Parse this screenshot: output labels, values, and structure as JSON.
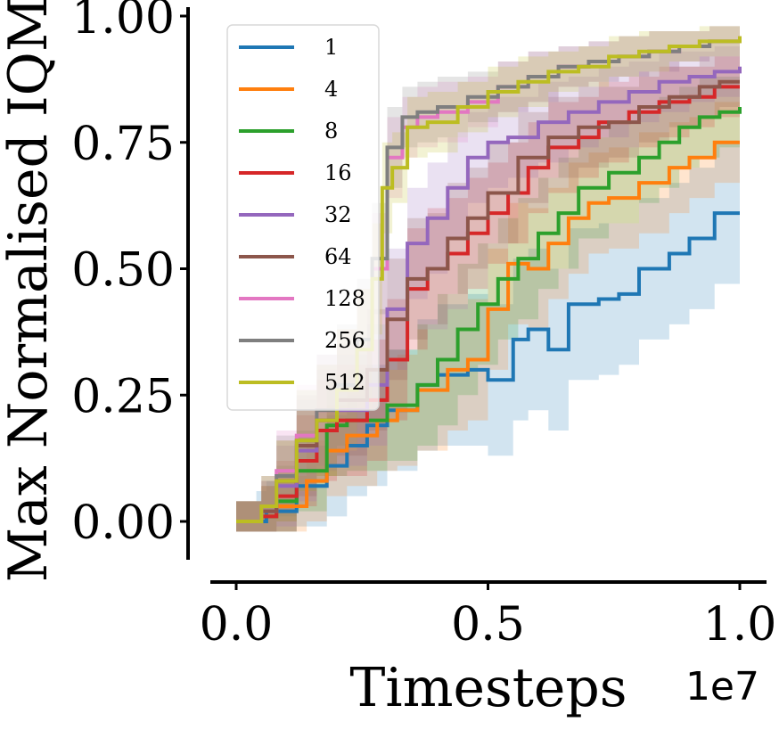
{
  "chart_data": {
    "type": "line",
    "xlabel": "Timesteps",
    "ylabel": "Max Normalised IQM",
    "x_offset_label": "1e7",
    "xlim": [
      -0.05,
      1.05
    ],
    "ylim": [
      -0.07,
      1.01
    ],
    "x_ticks": [
      0.0,
      0.5,
      1.0
    ],
    "x_tick_labels": [
      "0.0",
      "0.5",
      "1.0"
    ],
    "y_ticks": [
      0.0,
      0.25,
      0.5,
      0.75,
      1.0
    ],
    "y_tick_labels": [
      "0.00",
      "0.25",
      "0.50",
      "0.75",
      "1.00"
    ],
    "grid": false,
    "legend_position": "upper-left",
    "series": [
      {
        "name": "1",
        "color": "#1f77b4",
        "x": [
          0,
          0.04,
          0.06,
          0.12,
          0.18,
          0.22,
          0.26,
          0.3,
          0.36,
          0.4,
          0.46,
          0.5,
          0.55,
          0.58,
          0.62,
          0.66,
          0.72,
          0.76,
          0.8,
          0.86,
          0.9,
          0.95,
          1.0
        ],
        "y": [
          0,
          0,
          0.02,
          0.07,
          0.11,
          0.15,
          0.19,
          0.22,
          0.27,
          0.29,
          0.3,
          0.28,
          0.36,
          0.38,
          0.34,
          0.43,
          0.44,
          0.45,
          0.5,
          0.53,
          0.56,
          0.61,
          0.61
        ],
        "band": [
          0.04,
          0.06,
          0.06,
          0.08,
          0.1,
          0.1,
          0.12,
          0.12,
          0.13,
          0.14,
          0.15,
          0.15,
          0.16,
          0.16,
          0.16,
          0.15,
          0.15,
          0.14,
          0.14,
          0.14,
          0.14,
          0.14,
          0.14
        ]
      },
      {
        "name": "4",
        "color": "#ff7f0e",
        "x": [
          0,
          0.05,
          0.08,
          0.14,
          0.18,
          0.22,
          0.28,
          0.32,
          0.36,
          0.42,
          0.46,
          0.5,
          0.54,
          0.58,
          0.62,
          0.66,
          0.7,
          0.74,
          0.8,
          0.86,
          0.9,
          0.95,
          1.0
        ],
        "y": [
          0,
          0.01,
          0.03,
          0.08,
          0.14,
          0.17,
          0.2,
          0.22,
          0.26,
          0.3,
          0.32,
          0.42,
          0.51,
          0.5,
          0.55,
          0.6,
          0.63,
          0.64,
          0.67,
          0.7,
          0.72,
          0.75,
          0.75
        ],
        "band": [
          0.04,
          0.06,
          0.06,
          0.08,
          0.09,
          0.1,
          0.1,
          0.11,
          0.12,
          0.12,
          0.12,
          0.12,
          0.12,
          0.12,
          0.11,
          0.11,
          0.1,
          0.1,
          0.1,
          0.09,
          0.08,
          0.08,
          0.08
        ]
      },
      {
        "name": "8",
        "color": "#2ca02c",
        "x": [
          0,
          0.05,
          0.08,
          0.12,
          0.18,
          0.22,
          0.3,
          0.36,
          0.4,
          0.44,
          0.48,
          0.52,
          0.56,
          0.6,
          0.64,
          0.68,
          0.74,
          0.8,
          0.84,
          0.88,
          0.92,
          0.96,
          1.0
        ],
        "y": [
          0,
          0.01,
          0.04,
          0.1,
          0.19,
          0.2,
          0.23,
          0.27,
          0.32,
          0.38,
          0.43,
          0.48,
          0.52,
          0.57,
          0.61,
          0.66,
          0.69,
          0.72,
          0.75,
          0.78,
          0.8,
          0.81,
          0.82
        ],
        "band": [
          0.04,
          0.06,
          0.07,
          0.08,
          0.1,
          0.1,
          0.11,
          0.12,
          0.13,
          0.13,
          0.12,
          0.12,
          0.12,
          0.11,
          0.11,
          0.1,
          0.1,
          0.09,
          0.09,
          0.08,
          0.08,
          0.07,
          0.07
        ]
      },
      {
        "name": "16",
        "color": "#d62728",
        "x": [
          0,
          0.05,
          0.08,
          0.12,
          0.16,
          0.2,
          0.26,
          0.3,
          0.34,
          0.38,
          0.42,
          0.46,
          0.5,
          0.54,
          0.58,
          0.62,
          0.68,
          0.72,
          0.78,
          0.84,
          0.9,
          0.95,
          1.0
        ],
        "y": [
          0,
          0.01,
          0.05,
          0.12,
          0.18,
          0.2,
          0.24,
          0.32,
          0.46,
          0.5,
          0.53,
          0.57,
          0.61,
          0.65,
          0.7,
          0.74,
          0.76,
          0.79,
          0.81,
          0.83,
          0.84,
          0.86,
          0.86
        ],
        "band": [
          0.04,
          0.06,
          0.07,
          0.09,
          0.1,
          0.11,
          0.12,
          0.12,
          0.12,
          0.12,
          0.11,
          0.11,
          0.1,
          0.1,
          0.09,
          0.09,
          0.08,
          0.08,
          0.07,
          0.07,
          0.06,
          0.06,
          0.06
        ]
      },
      {
        "name": "32",
        "color": "#9467bd",
        "x": [
          0,
          0.05,
          0.08,
          0.12,
          0.16,
          0.2,
          0.26,
          0.3,
          0.34,
          0.38,
          0.42,
          0.46,
          0.5,
          0.54,
          0.6,
          0.66,
          0.72,
          0.78,
          0.84,
          0.9,
          0.95,
          1.0
        ],
        "y": [
          0,
          0.02,
          0.07,
          0.14,
          0.2,
          0.22,
          0.27,
          0.42,
          0.55,
          0.6,
          0.66,
          0.72,
          0.75,
          0.76,
          0.79,
          0.81,
          0.83,
          0.85,
          0.87,
          0.88,
          0.89,
          0.9
        ],
        "band": [
          0.04,
          0.06,
          0.08,
          0.1,
          0.1,
          0.11,
          0.12,
          0.12,
          0.11,
          0.11,
          0.1,
          0.09,
          0.09,
          0.08,
          0.08,
          0.07,
          0.07,
          0.06,
          0.06,
          0.05,
          0.05,
          0.05
        ]
      },
      {
        "name": "64",
        "color": "#8c564b",
        "x": [
          0,
          0.05,
          0.08,
          0.12,
          0.16,
          0.2,
          0.26,
          0.3,
          0.34,
          0.38,
          0.42,
          0.46,
          0.5,
          0.56,
          0.62,
          0.68,
          0.74,
          0.8,
          0.86,
          0.92,
          0.96,
          1.0
        ],
        "y": [
          0,
          0.02,
          0.08,
          0.15,
          0.2,
          0.24,
          0.3,
          0.4,
          0.48,
          0.5,
          0.56,
          0.6,
          0.65,
          0.72,
          0.76,
          0.78,
          0.79,
          0.82,
          0.84,
          0.86,
          0.87,
          0.87
        ],
        "band": [
          0.04,
          0.06,
          0.08,
          0.1,
          0.11,
          0.11,
          0.12,
          0.12,
          0.12,
          0.11,
          0.11,
          0.1,
          0.1,
          0.09,
          0.08,
          0.08,
          0.07,
          0.07,
          0.06,
          0.06,
          0.05,
          0.05
        ]
      },
      {
        "name": "128",
        "color": "#e377c2",
        "x": [
          0,
          0.05,
          0.08,
          0.12,
          0.16,
          0.2,
          0.24,
          0.27,
          0.3,
          0.33,
          0.36,
          0.4,
          0.46,
          0.52,
          0.58,
          0.64,
          0.7,
          0.76,
          0.82,
          0.88,
          0.94,
          1.0
        ],
        "y": [
          0,
          0.03,
          0.1,
          0.17,
          0.22,
          0.26,
          0.34,
          0.5,
          0.72,
          0.78,
          0.8,
          0.81,
          0.83,
          0.86,
          0.88,
          0.9,
          0.91,
          0.92,
          0.93,
          0.94,
          0.95,
          0.96
        ],
        "band": [
          0.04,
          0.06,
          0.08,
          0.1,
          0.11,
          0.12,
          0.12,
          0.11,
          0.08,
          0.06,
          0.06,
          0.06,
          0.05,
          0.05,
          0.05,
          0.04,
          0.04,
          0.04,
          0.04,
          0.03,
          0.03,
          0.03
        ]
      },
      {
        "name": "256",
        "color": "#7f7f7f",
        "x": [
          0,
          0.05,
          0.08,
          0.12,
          0.16,
          0.2,
          0.24,
          0.27,
          0.3,
          0.33,
          0.36,
          0.4,
          0.46,
          0.52,
          0.58,
          0.64,
          0.7,
          0.76,
          0.82,
          0.88,
          0.94,
          1.0
        ],
        "y": [
          0,
          0.03,
          0.09,
          0.16,
          0.22,
          0.27,
          0.36,
          0.52,
          0.74,
          0.8,
          0.81,
          0.82,
          0.84,
          0.86,
          0.88,
          0.9,
          0.91,
          0.92,
          0.93,
          0.94,
          0.95,
          0.95
        ],
        "band": [
          0.04,
          0.06,
          0.08,
          0.1,
          0.11,
          0.12,
          0.12,
          0.11,
          0.08,
          0.06,
          0.06,
          0.06,
          0.05,
          0.05,
          0.05,
          0.04,
          0.04,
          0.04,
          0.04,
          0.03,
          0.03,
          0.03
        ]
      },
      {
        "name": "512",
        "color": "#bcbd22",
        "x": [
          0,
          0.05,
          0.08,
          0.12,
          0.16,
          0.2,
          0.24,
          0.27,
          0.29,
          0.31,
          0.34,
          0.38,
          0.44,
          0.5,
          0.56,
          0.62,
          0.68,
          0.74,
          0.8,
          0.86,
          0.92,
          1.0
        ],
        "y": [
          0,
          0.03,
          0.08,
          0.16,
          0.2,
          0.26,
          0.34,
          0.48,
          0.66,
          0.7,
          0.78,
          0.79,
          0.82,
          0.85,
          0.87,
          0.89,
          0.9,
          0.92,
          0.93,
          0.94,
          0.95,
          0.96
        ],
        "band": [
          0.04,
          0.06,
          0.08,
          0.1,
          0.11,
          0.12,
          0.12,
          0.11,
          0.09,
          0.07,
          0.06,
          0.06,
          0.05,
          0.05,
          0.05,
          0.04,
          0.04,
          0.04,
          0.04,
          0.03,
          0.03,
          0.03
        ]
      }
    ]
  }
}
